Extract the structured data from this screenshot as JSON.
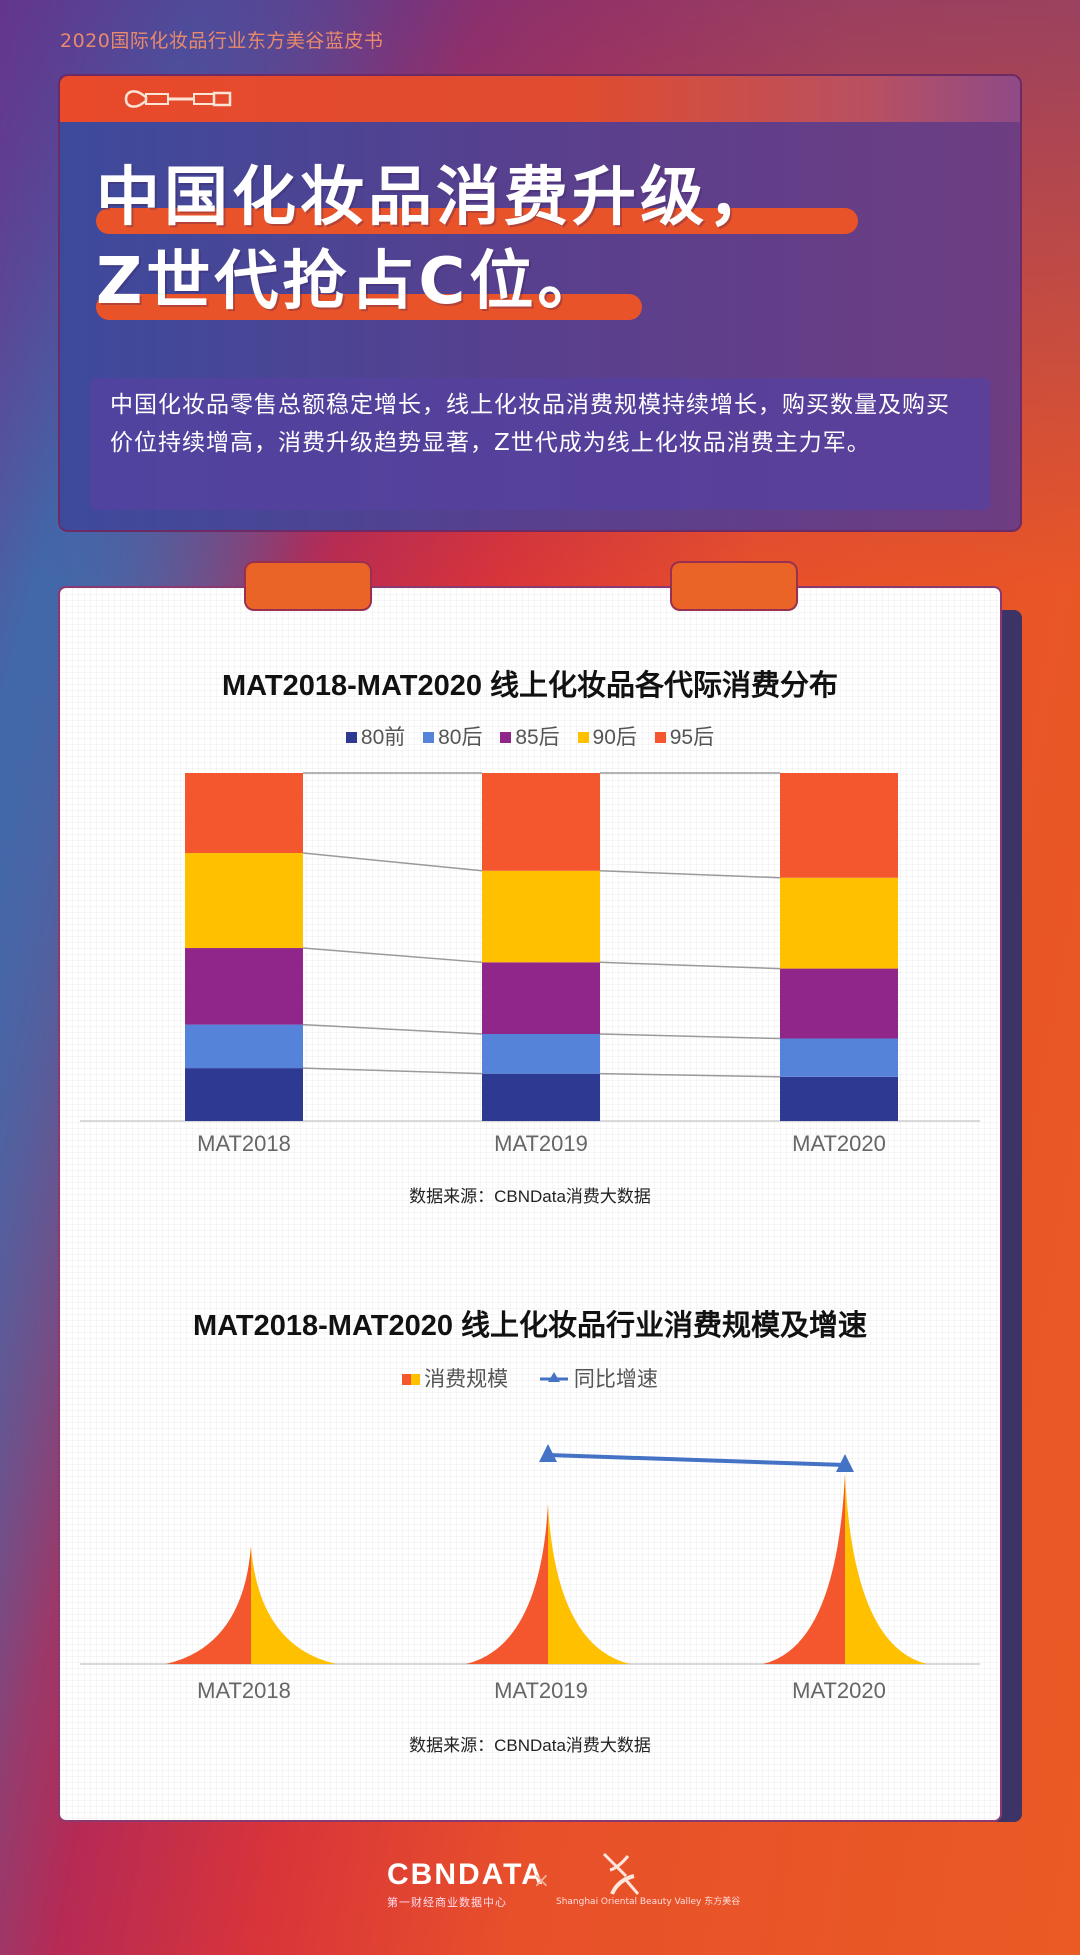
{
  "report_name": "2020国际化妆品行业东方美谷蓝皮书",
  "headline": {
    "line1": "中国化妆品消费升级，",
    "line2": "Z世代抢占C位。"
  },
  "description": "中国化妆品零售总额稳定增长，线上化妆品消费规模持续增长，购买数量及购买价位持续增高，消费升级趋势显著，Z世代成为线上化妆品消费主力军。",
  "icons": {
    "header_icon": "makeup-wand-icon"
  },
  "colors": {
    "accent_orange": "#E8532A",
    "card_purple": "#56408F",
    "series_80qian": "#2E3A92",
    "series_80hou": "#5683DA",
    "series_85hou": "#90268A",
    "series_90hou": "#FFC000",
    "series_95hou": "#F4572E",
    "growth_line": "#4472C4"
  },
  "chart_data": [
    {
      "type": "bar",
      "stacked": true,
      "normalized": true,
      "title": "MAT2018-MAT2020 线上化妆品各代际消费分布",
      "categories": [
        "MAT2018",
        "MAT2019",
        "MAT2020"
      ],
      "series": [
        {
          "name": "80前",
          "color": "#2E3A92",
          "values": [
            15.2,
            13.6,
            12.7
          ]
        },
        {
          "name": "80后",
          "color": "#5683DA",
          "values": [
            12.5,
            11.4,
            11.0
          ]
        },
        {
          "name": "85后",
          "color": "#90268A",
          "values": [
            22.0,
            20.6,
            20.1
          ]
        },
        {
          "name": "90后",
          "color": "#FFC000",
          "values": [
            27.3,
            26.3,
            26.1
          ]
        },
        {
          "name": "95后",
          "color": "#F4572E",
          "values": [
            23.0,
            28.1,
            30.1
          ]
        }
      ],
      "xlabel": "",
      "ylabel": "",
      "ylim": [
        0,
        100
      ],
      "grid": false,
      "legend_position": "top",
      "series_lines": true,
      "source": "数据来源：CBNData消费大数据"
    },
    {
      "type": "bar",
      "bar_shape": "peak",
      "title": "MAT2018-MAT2020 线上化妆品行业消费规模及增速",
      "categories": [
        "MAT2018",
        "MAT2019",
        "MAT2020"
      ],
      "series": [
        {
          "name": "消费规模",
          "type": "bar",
          "colors": [
            "#F4572E",
            "#FFC000"
          ],
          "values": [
            118,
            160,
            191
          ],
          "unit": "relative height (no axis shown)"
        },
        {
          "name": "同比增速",
          "type": "line",
          "marker": "triangle",
          "color": "#4472C4",
          "values": [
            null,
            209,
            199
          ],
          "unit": "relative height (no axis shown)"
        }
      ],
      "xlabel": "",
      "ylabel": "",
      "grid": false,
      "legend_position": "top",
      "source": "数据来源：CBNData消费大数据"
    }
  ],
  "chart1": {
    "title": "MAT2018-MAT2020 线上化妆品各代际消费分布",
    "legend": [
      "80前",
      "80后",
      "85后",
      "90后",
      "95后"
    ],
    "x_labels": [
      "MAT2018",
      "MAT2019",
      "MAT2020"
    ],
    "source": "数据来源：CBNData消费大数据"
  },
  "chart2": {
    "title": "MAT2018-MAT2020 线上化妆品行业消费规模及增速",
    "legend": [
      "消费规模",
      "同比增速"
    ],
    "x_labels": [
      "MAT2018",
      "MAT2019",
      "MAT2020"
    ],
    "source": "数据来源：CBNData消费大数据"
  },
  "footer": {
    "logo1_main": "CBNDATA",
    "logo1_sub": "第一财经商业数据中心",
    "separator": "×",
    "logo2_sub": "Shanghai Oriental Beauty Valley 东方美谷"
  }
}
